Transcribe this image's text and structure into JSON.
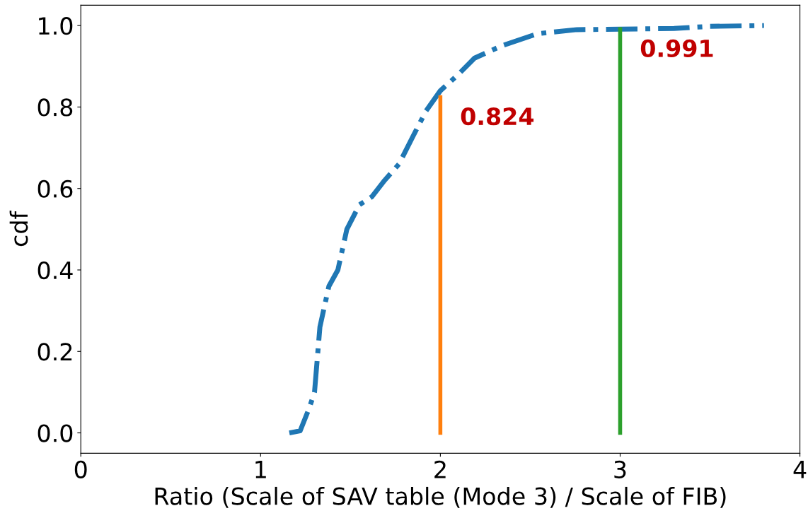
{
  "chart_data": {
    "type": "line",
    "xlabel": "Ratio (Scale of SAV table (Mode 3) / Scale of FIB)",
    "ylabel": "cdf",
    "xlim": [
      0,
      4
    ],
    "xticks": [
      0,
      1,
      2,
      3,
      4
    ],
    "ylim": [
      -0.05,
      1.05
    ],
    "yticks": [
      {
        "value": 0,
        "label": "0.0"
      },
      0.2,
      0.4,
      0.6,
      0.8,
      {
        "value": 1,
        "label": "1.0"
      }
    ],
    "grid": false,
    "legend": false,
    "series": [
      {
        "color": "#1f77b4",
        "line_style": "dashdot",
        "x": [
          1.16,
          1.22,
          1.27,
          1.3,
          1.33,
          1.38,
          1.43,
          1.48,
          1.55,
          1.62,
          1.69,
          1.77,
          1.85,
          1.92,
          2.0,
          2.1,
          2.19,
          2.34,
          2.54,
          2.76,
          3.0,
          3.3,
          3.5,
          3.8
        ],
        "values": [
          0.0,
          0.005,
          0.06,
          0.1,
          0.26,
          0.36,
          0.4,
          0.5,
          0.56,
          0.58,
          0.62,
          0.66,
          0.73,
          0.79,
          0.84,
          0.88,
          0.92,
          0.95,
          0.98,
          0.99,
          0.991,
          0.993,
          0.998,
          1.0
        ]
      },
      {
        "color": "#ff7f0e",
        "line_style": "solid",
        "x": [
          2,
          2
        ],
        "values": [
          0,
          0.824
        ]
      },
      {
        "color": "#2ca02c",
        "line_style": "solid",
        "x": [
          3,
          3
        ],
        "values": [
          0,
          0.991
        ]
      }
    ],
    "annotations": [
      {
        "text": "0.824",
        "x": 2,
        "y": 0.824
      },
      {
        "text": "0.991",
        "x": 3,
        "y": 0.991
      }
    ]
  }
}
